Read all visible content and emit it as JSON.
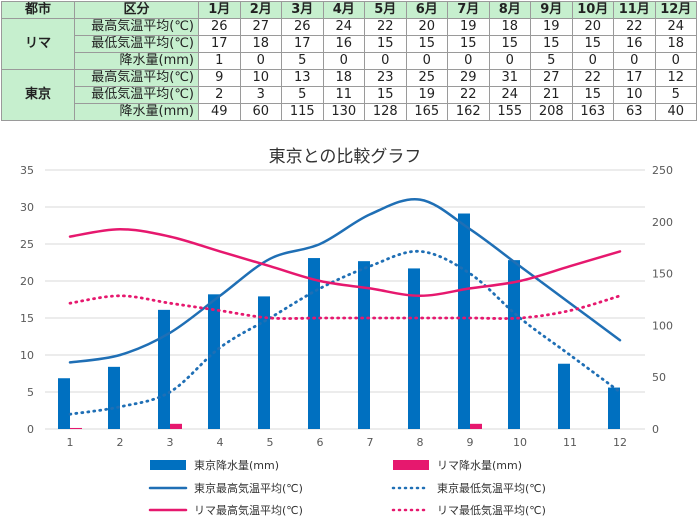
{
  "table": {
    "header": {
      "city": "都市",
      "metric": "区分"
    },
    "months": [
      "1月",
      "2月",
      "3月",
      "4月",
      "5月",
      "6月",
      "7月",
      "8月",
      "9月",
      "10月",
      "11月",
      "12月"
    ],
    "cities": [
      {
        "name": "リマ",
        "rows": [
          {
            "label": "最高気温平均(℃)",
            "values": [
              26,
              27,
              26,
              24,
              22,
              20,
              19,
              18,
              19,
              20,
              22,
              24
            ]
          },
          {
            "label": "最低気温平均(℃)",
            "values": [
              17,
              18,
              17,
              16,
              15,
              15,
              15,
              15,
              15,
              15,
              16,
              18
            ]
          },
          {
            "label": "降水量(mm)",
            "values": [
              1,
              0,
              5,
              0,
              0,
              0,
              0,
              0,
              5,
              0,
              0,
              0
            ]
          }
        ]
      },
      {
        "name": "東京",
        "rows": [
          {
            "label": "最高気温平均(℃)",
            "values": [
              9,
              10,
              13,
              18,
              23,
              25,
              29,
              31,
              27,
              22,
              17,
              12
            ]
          },
          {
            "label": "最低気温平均(℃)",
            "values": [
              2,
              3,
              5,
              11,
              15,
              19,
              22,
              24,
              21,
              15,
              10,
              5
            ]
          },
          {
            "label": "降水量(mm)",
            "values": [
              49,
              60,
              115,
              130,
              128,
              165,
              162,
              155,
              208,
              163,
              63,
              40
            ]
          }
        ]
      }
    ]
  },
  "chart_data": {
    "type": "bar+line",
    "title": "東京との比較グラフ",
    "categories": [
      "1",
      "2",
      "3",
      "4",
      "5",
      "6",
      "7",
      "8",
      "9",
      "10",
      "11",
      "12"
    ],
    "y_left": {
      "min": 0,
      "max": 35,
      "ticks": [
        "0",
        "5",
        "10",
        "15",
        "20",
        "25",
        "30",
        "35"
      ]
    },
    "y_right": {
      "min": 0,
      "max": 250,
      "ticks": [
        "0",
        "50",
        "100",
        "150",
        "200",
        "250"
      ]
    },
    "grid": "horizontal",
    "legend_position": "bottom",
    "series": [
      {
        "name": "東京降水量(mm)",
        "type": "bar",
        "axis": "right",
        "color": "#0070c0",
        "values": [
          49,
          60,
          115,
          130,
          128,
          165,
          162,
          155,
          208,
          163,
          63,
          40
        ]
      },
      {
        "name": "リマ降水量(mm)",
        "type": "bar",
        "axis": "right",
        "color": "#e6186e",
        "values": [
          1,
          0,
          5,
          0,
          0,
          0,
          0,
          0,
          5,
          0,
          0,
          0
        ]
      },
      {
        "name": "東京最高気温平均(℃)",
        "type": "line",
        "style": "solid",
        "axis": "left",
        "color": "#1f6fb5",
        "values": [
          9,
          10,
          13,
          18,
          23,
          25,
          29,
          31,
          27,
          22,
          17,
          12
        ]
      },
      {
        "name": "東京最低気温平均(℃)",
        "type": "line",
        "style": "dotted",
        "axis": "left",
        "color": "#1f6fb5",
        "values": [
          2,
          3,
          5,
          11,
          15,
          19,
          22,
          24,
          21,
          15,
          10,
          5
        ]
      },
      {
        "name": "リマ最高気温平均(℃)",
        "type": "line",
        "style": "solid",
        "axis": "left",
        "color": "#e6186e",
        "values": [
          26,
          27,
          26,
          24,
          22,
          20,
          19,
          18,
          19,
          20,
          22,
          24
        ]
      },
      {
        "name": "リマ最低気温平均(℃)",
        "type": "line",
        "style": "dotted",
        "axis": "left",
        "color": "#e6186e",
        "values": [
          17,
          18,
          17,
          16,
          15,
          15,
          15,
          15,
          15,
          15,
          16,
          18
        ]
      }
    ]
  }
}
